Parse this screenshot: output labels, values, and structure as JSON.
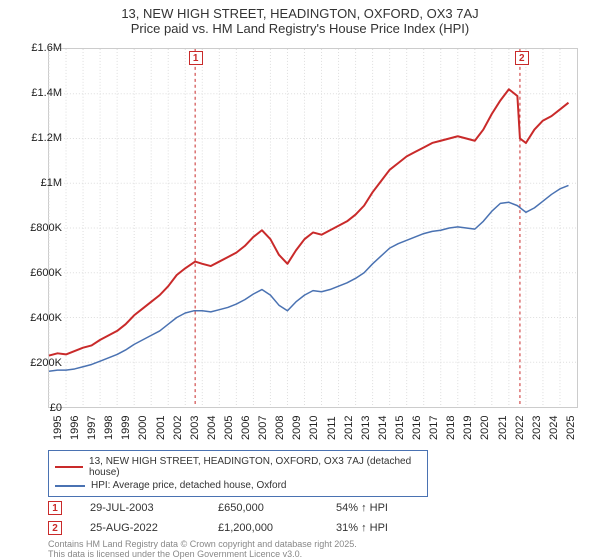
{
  "title1": "13, NEW HIGH STREET, HEADINGTON, OXFORD, OX3 7AJ",
  "title2": "Price paid vs. HM Land Registry's House Price Index (HPI)",
  "chart": {
    "type": "line",
    "background_color": "#ffffff",
    "grid_color": "#dddddd",
    "border_color": "#cccccc",
    "ylim": [
      0,
      1600000
    ],
    "ytick_step": 200000,
    "yticks": [
      {
        "v": 0,
        "label": "£0"
      },
      {
        "v": 200000,
        "label": "£200K"
      },
      {
        "v": 400000,
        "label": "£400K"
      },
      {
        "v": 600000,
        "label": "£600K"
      },
      {
        "v": 800000,
        "label": "£800K"
      },
      {
        "v": 1000000,
        "label": "£1M"
      },
      {
        "v": 1200000,
        "label": "£1.2M"
      },
      {
        "v": 1400000,
        "label": "£1.4M"
      },
      {
        "v": 1600000,
        "label": "£1.6M"
      }
    ],
    "xlim": [
      1995,
      2026
    ],
    "xticks": [
      1995,
      1996,
      1997,
      1998,
      1999,
      2000,
      2001,
      2002,
      2003,
      2004,
      2005,
      2006,
      2007,
      2008,
      2009,
      2010,
      2011,
      2012,
      2013,
      2014,
      2015,
      2016,
      2017,
      2018,
      2019,
      2020,
      2021,
      2022,
      2023,
      2024,
      2025
    ],
    "series": [
      {
        "name": "13, NEW HIGH STREET, HEADINGTON, OXFORD, OX3 7AJ (detached house)",
        "color": "#c92a2a",
        "line_width": 2,
        "data": [
          [
            1995,
            230000
          ],
          [
            1995.5,
            240000
          ],
          [
            1996,
            235000
          ],
          [
            1996.5,
            250000
          ],
          [
            1997,
            265000
          ],
          [
            1997.5,
            275000
          ],
          [
            1998,
            300000
          ],
          [
            1998.5,
            320000
          ],
          [
            1999,
            340000
          ],
          [
            1999.5,
            370000
          ],
          [
            2000,
            410000
          ],
          [
            2000.5,
            440000
          ],
          [
            2001,
            470000
          ],
          [
            2001.5,
            500000
          ],
          [
            2002,
            540000
          ],
          [
            2002.5,
            590000
          ],
          [
            2003,
            620000
          ],
          [
            2003.58,
            650000
          ],
          [
            2004,
            640000
          ],
          [
            2004.5,
            630000
          ],
          [
            2005,
            650000
          ],
          [
            2005.5,
            670000
          ],
          [
            2006,
            690000
          ],
          [
            2006.5,
            720000
          ],
          [
            2007,
            760000
          ],
          [
            2007.5,
            790000
          ],
          [
            2008,
            750000
          ],
          [
            2008.5,
            680000
          ],
          [
            2009,
            640000
          ],
          [
            2009.5,
            700000
          ],
          [
            2010,
            750000
          ],
          [
            2010.5,
            780000
          ],
          [
            2011,
            770000
          ],
          [
            2011.5,
            790000
          ],
          [
            2012,
            810000
          ],
          [
            2012.5,
            830000
          ],
          [
            2013,
            860000
          ],
          [
            2013.5,
            900000
          ],
          [
            2014,
            960000
          ],
          [
            2014.5,
            1010000
          ],
          [
            2015,
            1060000
          ],
          [
            2015.5,
            1090000
          ],
          [
            2016,
            1120000
          ],
          [
            2016.5,
            1140000
          ],
          [
            2017,
            1160000
          ],
          [
            2017.5,
            1180000
          ],
          [
            2018,
            1190000
          ],
          [
            2018.5,
            1200000
          ],
          [
            2019,
            1210000
          ],
          [
            2019.5,
            1200000
          ],
          [
            2020,
            1190000
          ],
          [
            2020.5,
            1240000
          ],
          [
            2021,
            1310000
          ],
          [
            2021.5,
            1370000
          ],
          [
            2022,
            1420000
          ],
          [
            2022.5,
            1390000
          ],
          [
            2022.65,
            1200000
          ],
          [
            2023,
            1180000
          ],
          [
            2023.5,
            1240000
          ],
          [
            2024,
            1280000
          ],
          [
            2024.5,
            1300000
          ],
          [
            2025,
            1330000
          ],
          [
            2025.5,
            1360000
          ]
        ]
      },
      {
        "name": "HPI: Average price, detached house, Oxford",
        "color": "#4a72b2",
        "line_width": 1.5,
        "data": [
          [
            1995,
            160000
          ],
          [
            1995.5,
            165000
          ],
          [
            1996,
            165000
          ],
          [
            1996.5,
            170000
          ],
          [
            1997,
            180000
          ],
          [
            1997.5,
            190000
          ],
          [
            1998,
            205000
          ],
          [
            1998.5,
            220000
          ],
          [
            1999,
            235000
          ],
          [
            1999.5,
            255000
          ],
          [
            2000,
            280000
          ],
          [
            2000.5,
            300000
          ],
          [
            2001,
            320000
          ],
          [
            2001.5,
            340000
          ],
          [
            2002,
            370000
          ],
          [
            2002.5,
            400000
          ],
          [
            2003,
            420000
          ],
          [
            2003.5,
            430000
          ],
          [
            2004,
            430000
          ],
          [
            2004.5,
            425000
          ],
          [
            2005,
            435000
          ],
          [
            2005.5,
            445000
          ],
          [
            2006,
            460000
          ],
          [
            2006.5,
            480000
          ],
          [
            2007,
            505000
          ],
          [
            2007.5,
            525000
          ],
          [
            2008,
            500000
          ],
          [
            2008.5,
            455000
          ],
          [
            2009,
            430000
          ],
          [
            2009.5,
            470000
          ],
          [
            2010,
            500000
          ],
          [
            2010.5,
            520000
          ],
          [
            2011,
            515000
          ],
          [
            2011.5,
            525000
          ],
          [
            2012,
            540000
          ],
          [
            2012.5,
            555000
          ],
          [
            2013,
            575000
          ],
          [
            2013.5,
            600000
          ],
          [
            2014,
            640000
          ],
          [
            2014.5,
            675000
          ],
          [
            2015,
            710000
          ],
          [
            2015.5,
            730000
          ],
          [
            2016,
            745000
          ],
          [
            2016.5,
            760000
          ],
          [
            2017,
            775000
          ],
          [
            2017.5,
            785000
          ],
          [
            2018,
            790000
          ],
          [
            2018.5,
            800000
          ],
          [
            2019,
            805000
          ],
          [
            2019.5,
            800000
          ],
          [
            2020,
            795000
          ],
          [
            2020.5,
            830000
          ],
          [
            2021,
            875000
          ],
          [
            2021.5,
            910000
          ],
          [
            2022,
            915000
          ],
          [
            2022.5,
            900000
          ],
          [
            2023,
            870000
          ],
          [
            2023.5,
            890000
          ],
          [
            2024,
            920000
          ],
          [
            2024.5,
            950000
          ],
          [
            2025,
            975000
          ],
          [
            2025.5,
            990000
          ]
        ]
      }
    ],
    "markers": [
      {
        "id": "1",
        "x": 2003.58,
        "color": "#c92a2a",
        "box_top": 0
      },
      {
        "id": "2",
        "x": 2022.65,
        "color": "#c92a2a",
        "box_top": 0
      }
    ]
  },
  "legend": {
    "border_color": "#4a72b2",
    "items": [
      {
        "color": "#c92a2a",
        "label": "13, NEW HIGH STREET, HEADINGTON, OXFORD, OX3 7AJ (detached house)"
      },
      {
        "color": "#4a72b2",
        "label": "HPI: Average price, detached house, Oxford"
      }
    ]
  },
  "sales": [
    {
      "marker": "1",
      "marker_color": "#c92a2a",
      "date": "29-JUL-2003",
      "price": "£650,000",
      "delta": "54% ↑ HPI"
    },
    {
      "marker": "2",
      "marker_color": "#c92a2a",
      "date": "25-AUG-2022",
      "price": "£1,200,000",
      "delta": "31% ↑ HPI"
    }
  ],
  "attribution": {
    "line1": "Contains HM Land Registry data © Crown copyright and database right 2025.",
    "line2": "This data is licensed under the Open Government Licence v3.0."
  }
}
